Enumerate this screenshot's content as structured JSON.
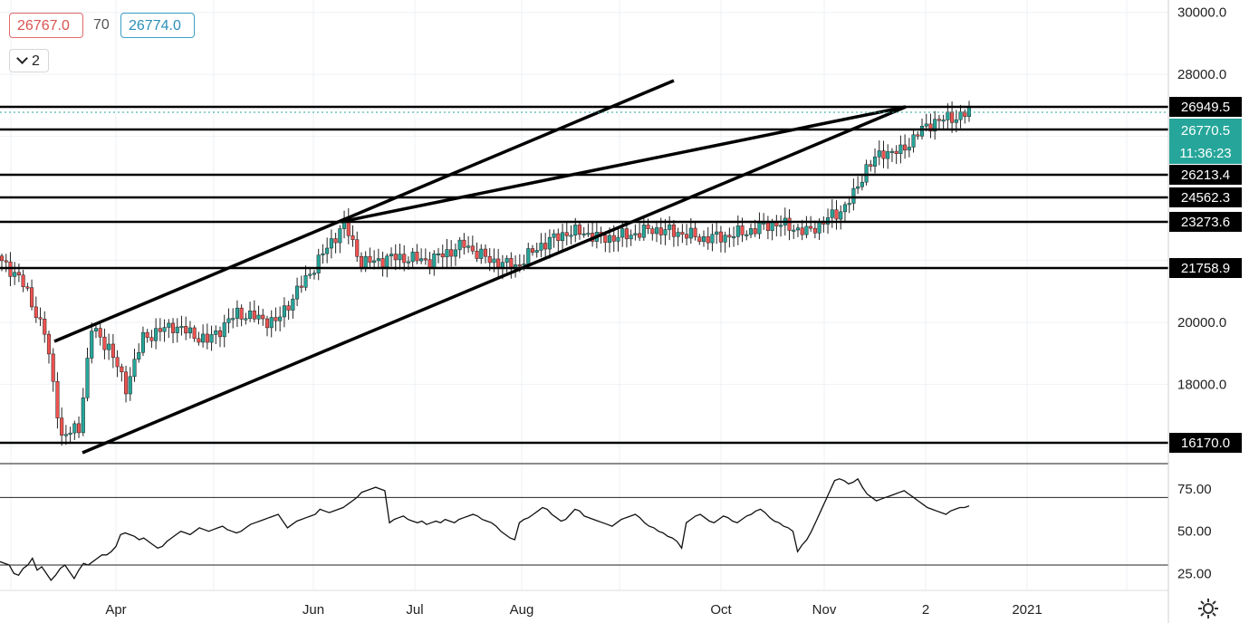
{
  "legend": {
    "open_value": "26767.0",
    "mid_value": "70",
    "close_value": "26774.0",
    "collapse_label": "2"
  },
  "colors": {
    "up": "#26a69a",
    "down": "#ef5350",
    "current_price": "#26a69a",
    "level_label_bg": "#000000",
    "trend_line": "#000000"
  },
  "price_axis": {
    "ticks": [
      "30000.0",
      "28000.0",
      "20000.0",
      "18000.0"
    ],
    "range": [
      15500,
      30400
    ]
  },
  "time_axis": {
    "labels": [
      "Apr",
      "Jun",
      "Jul",
      "Aug",
      "Oct",
      "Nov",
      "2",
      "2021"
    ]
  },
  "levels": [
    {
      "value": 26949.5,
      "label": "26949.5"
    },
    {
      "value": 26213.4,
      "label": "26213.4"
    },
    {
      "value": 24562.3,
      "label": "24562.3"
    },
    {
      "value": 23273.6,
      "label": "23273.6"
    },
    {
      "value": 21758.9,
      "label": "21758.9"
    },
    {
      "value": 16170.0,
      "label": "16170.0"
    }
  ],
  "current_price": {
    "label": "26770.5",
    "countdown": "11:36:23"
  },
  "indicator": {
    "ticks": [
      "75.00",
      "50.00",
      "25.00"
    ],
    "range": [
      15,
      90
    ],
    "bands": [
      70,
      30
    ],
    "values": [
      32,
      31,
      30,
      25,
      24,
      28,
      30,
      34,
      27,
      29,
      25,
      21,
      24,
      28,
      30,
      26,
      22,
      27,
      31,
      30,
      32,
      34,
      36,
      36,
      38,
      41,
      48,
      49,
      48,
      47,
      45,
      46,
      44,
      42,
      40,
      41,
      44,
      46,
      48,
      50,
      49,
      48,
      50,
      52,
      51,
      50,
      51,
      52,
      53,
      51,
      50,
      49,
      50,
      52,
      54,
      55,
      56,
      57,
      58,
      59,
      60,
      56,
      52,
      54,
      56,
      57,
      58,
      59,
      60,
      63,
      62,
      61,
      62,
      63,
      64,
      66,
      68,
      70,
      73,
      74,
      75,
      76,
      75,
      74,
      55,
      57,
      58,
      59,
      57,
      56,
      55,
      56,
      54,
      55,
      56,
      55,
      57,
      56,
      55,
      57,
      58,
      59,
      60,
      59,
      57,
      56,
      55,
      53,
      50,
      48,
      46,
      45,
      55,
      57,
      58,
      60,
      62,
      64,
      63,
      60,
      58,
      56,
      57,
      60,
      63,
      62,
      59,
      58,
      57,
      56,
      55,
      54,
      53,
      55,
      57,
      58,
      59,
      60,
      58,
      55,
      53,
      52,
      50,
      49,
      47,
      46,
      44,
      40,
      55,
      57,
      59,
      60,
      58,
      56,
      55,
      57,
      59,
      58,
      56,
      55,
      57,
      59,
      60,
      62,
      63,
      61,
      58,
      56,
      55,
      53,
      52,
      50,
      38,
      42,
      45,
      50,
      56,
      62,
      68,
      74,
      80,
      81,
      80,
      78,
      79,
      81,
      76,
      72,
      70,
      68,
      69,
      70,
      71,
      72,
      73,
      74,
      72,
      70,
      68,
      66,
      64,
      63,
      62,
      61,
      60,
      62,
      63,
      64,
      64,
      65
    ]
  },
  "chart_data": {
    "type": "candlestick",
    "title": "",
    "x_labels": [
      "Apr",
      "Jun",
      "Jul",
      "Aug",
      "Oct",
      "Nov",
      "2",
      "2021"
    ],
    "ylim": [
      15500,
      30400
    ],
    "close_path": [
      [
        0,
        21900
      ],
      [
        4,
        21500
      ],
      [
        10,
        19700
      ],
      [
        14,
        16300
      ],
      [
        18,
        16600
      ],
      [
        21,
        19800
      ],
      [
        25,
        19200
      ],
      [
        29,
        17900
      ],
      [
        33,
        19500
      ],
      [
        40,
        19900
      ],
      [
        48,
        19400
      ],
      [
        55,
        20300
      ],
      [
        64,
        20000
      ],
      [
        70,
        21200
      ],
      [
        75,
        22200
      ],
      [
        80,
        23200
      ],
      [
        84,
        21900
      ],
      [
        92,
        22100
      ],
      [
        100,
        22000
      ],
      [
        108,
        22500
      ],
      [
        114,
        22000
      ],
      [
        120,
        21800
      ],
      [
        126,
        22500
      ],
      [
        132,
        22900
      ],
      [
        136,
        22900
      ],
      [
        140,
        22700
      ],
      [
        146,
        22800
      ],
      [
        152,
        23000
      ],
      [
        158,
        22900
      ],
      [
        164,
        22700
      ],
      [
        170,
        22800
      ],
      [
        176,
        23000
      ],
      [
        180,
        23200
      ],
      [
        184,
        23100
      ],
      [
        188,
        22900
      ],
      [
        196,
        23600
      ],
      [
        199,
        24100
      ],
      [
        202,
        25000
      ],
      [
        206,
        25500
      ],
      [
        210,
        25500
      ],
      [
        214,
        26100
      ],
      [
        218,
        26500
      ],
      [
        222,
        26600
      ],
      [
        226,
        26770
      ]
    ],
    "series": [
      {
        "name": "",
        "type": "candlestick"
      },
      {
        "name": "",
        "type": "oscillator",
        "unit": ""
      }
    ],
    "horizontal_levels": [
      26949.5,
      26213.4,
      24562.3,
      23273.6,
      21758.9,
      16170.0
    ],
    "indicator_bands": [
      70,
      30
    ],
    "grid": true
  }
}
